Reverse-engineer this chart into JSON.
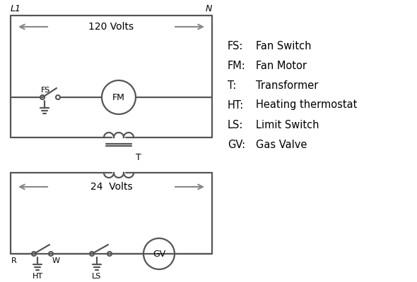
{
  "bg_color": "#ffffff",
  "line_color": "#555555",
  "arrow_color": "#888888",
  "text_color": "#000000",
  "legend": [
    [
      "FS:",
      "Fan Switch"
    ],
    [
      "FM:",
      "Fan Motor"
    ],
    [
      "T:",
      "Transformer"
    ],
    [
      "HT:",
      "Heating thermostat"
    ],
    [
      "LS:",
      "Limit Switch"
    ],
    [
      "GV:",
      "Gas Valve"
    ]
  ],
  "L1_label": "L1",
  "N_label": "N",
  "volts120_label": "120 Volts",
  "volts24_label": "24  Volts",
  "T_label": "T",
  "R_label": "R",
  "W_label": "W",
  "HT_label": "HT",
  "LS_label": "LS",
  "FS_label": "FS",
  "FM_label": "FM",
  "GV_label": "GV"
}
